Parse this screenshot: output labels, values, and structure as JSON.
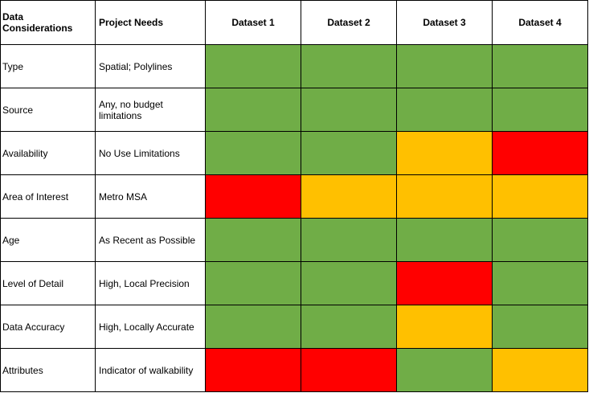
{
  "table": {
    "header": [
      "Data Considerations",
      "Project Needs",
      "Dataset 1",
      "Dataset 2",
      "Dataset 3",
      "Dataset 4"
    ],
    "rows": [
      {
        "consideration": "Type",
        "need": "Spatial; Polylines",
        "ratings": [
          "#70ad47",
          "#70ad47",
          "#70ad47",
          "#70ad47"
        ]
      },
      {
        "consideration": "Source",
        "need": "Any, no budget limitations",
        "ratings": [
          "#70ad47",
          "#70ad47",
          "#70ad47",
          "#70ad47"
        ]
      },
      {
        "consideration": "Availability",
        "need": "No Use Limitations",
        "ratings": [
          "#70ad47",
          "#70ad47",
          "#ffc000",
          "#ff0000"
        ]
      },
      {
        "consideration": "Area of Interest",
        "need": "Metro MSA",
        "ratings": [
          "#ff0000",
          "#ffc000",
          "#ffc000",
          "#ffc000"
        ]
      },
      {
        "consideration": "Age",
        "need": "As Recent as Possible",
        "ratings": [
          "#70ad47",
          "#70ad47",
          "#70ad47",
          "#70ad47"
        ]
      },
      {
        "consideration": "Level of Detail",
        "need": "High, Local Precision",
        "ratings": [
          "#70ad47",
          "#70ad47",
          "#ff0000",
          "#70ad47"
        ]
      },
      {
        "consideration": "Data Accuracy",
        "need": "High, Locally Accurate",
        "ratings": [
          "#70ad47",
          "#70ad47",
          "#ffc000",
          "#70ad47"
        ]
      },
      {
        "consideration": "Attributes",
        "need": "Indicator of walkability",
        "ratings": [
          "#ff0000",
          "#ff0000",
          "#70ad47",
          "#ffc000"
        ]
      }
    ]
  }
}
